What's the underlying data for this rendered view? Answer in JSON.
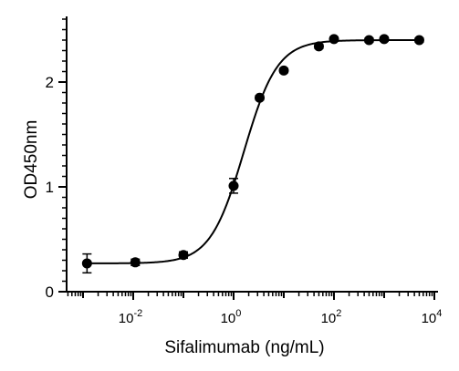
{
  "chart_data": {
    "type": "scatter",
    "xscale": "log",
    "xlabel": "Sifalimumab (ng/mL)",
    "ylabel": "OD450nm",
    "xlim": [
      0.0005,
      15000
    ],
    "ylim": [
      0,
      2.6
    ],
    "grid": false,
    "y_ticks": [
      0,
      1,
      2
    ],
    "y_tick_labels": [
      "0",
      "1",
      "2"
    ],
    "x_ticks": [
      {
        "value": 0.01,
        "base": "10",
        "exponent": "-2"
      },
      {
        "value": 1,
        "base": "10",
        "exponent": "0"
      },
      {
        "value": 100,
        "base": "10",
        "exponent": "2"
      },
      {
        "value": 10000,
        "base": "10",
        "exponent": "4"
      }
    ],
    "series": [
      {
        "color": "#000000",
        "points": [
          {
            "x": 0.0012,
            "y": 0.27,
            "err": 0.09
          },
          {
            "x": 0.011,
            "y": 0.28,
            "err": 0.03
          },
          {
            "x": 0.1,
            "y": 0.35,
            "err": 0.03
          },
          {
            "x": 1.0,
            "y": 1.01,
            "err": 0.07
          },
          {
            "x": 3.3,
            "y": 1.85,
            "err": 0.02
          },
          {
            "x": 10,
            "y": 2.11,
            "err": 0.02
          },
          {
            "x": 50,
            "y": 2.34,
            "err": 0.02
          },
          {
            "x": 100,
            "y": 2.41,
            "err": 0.02
          },
          {
            "x": 500,
            "y": 2.4,
            "err": 0.02
          },
          {
            "x": 1000,
            "y": 2.41,
            "err": 0.02
          },
          {
            "x": 5000,
            "y": 2.4,
            "err": 0.02
          }
        ]
      }
    ],
    "fit": {
      "type": "4PL",
      "bottom": 0.27,
      "top": 2.4,
      "ec50": 1.6,
      "hill": 1.3
    }
  }
}
